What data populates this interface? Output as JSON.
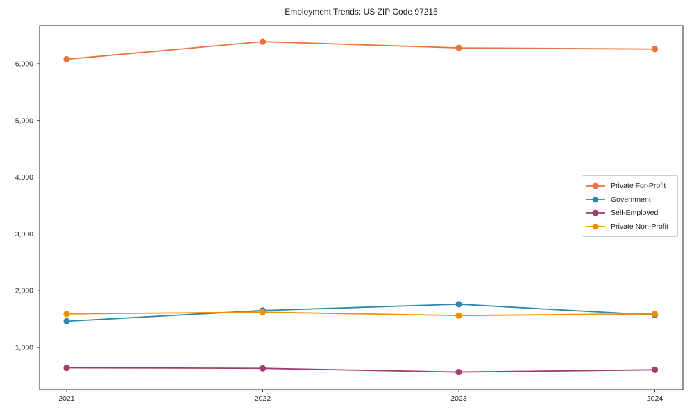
{
  "title": "Employment Trends: US ZIP Code 97215",
  "chart_data": {
    "type": "line",
    "title": "Employment Trends: US ZIP Code 97215",
    "xlabel": "",
    "ylabel": "",
    "categories": [
      "2021",
      "2022",
      "2023",
      "2024"
    ],
    "x": [
      2021,
      2022,
      2023,
      2024
    ],
    "series": [
      {
        "name": "Private For-Profit",
        "color": "#E8743B",
        "values": [
          6080,
          6390,
          6280,
          6260
        ]
      },
      {
        "name": "Government",
        "color": "#2E86AB",
        "values": [
          1460,
          1650,
          1760,
          1570
        ]
      },
      {
        "name": "Self-Employed",
        "color": "#A23B72",
        "values": [
          640,
          630,
          565,
          605
        ]
      },
      {
        "name": "Private Non-Profit",
        "color": "#F18F01",
        "values": [
          1590,
          1620,
          1560,
          1590
        ]
      }
    ],
    "yticks": [
      1000,
      2000,
      3000,
      4000,
      5000,
      6000
    ],
    "ytick_labels": [
      "1,000",
      "2,000",
      "3,000",
      "4,000",
      "5,000",
      "6,000"
    ],
    "ylim": [
      250,
      6720
    ],
    "grid": false,
    "legend_position": "right-middle",
    "marker": "circle",
    "axis_color": "#262626"
  }
}
